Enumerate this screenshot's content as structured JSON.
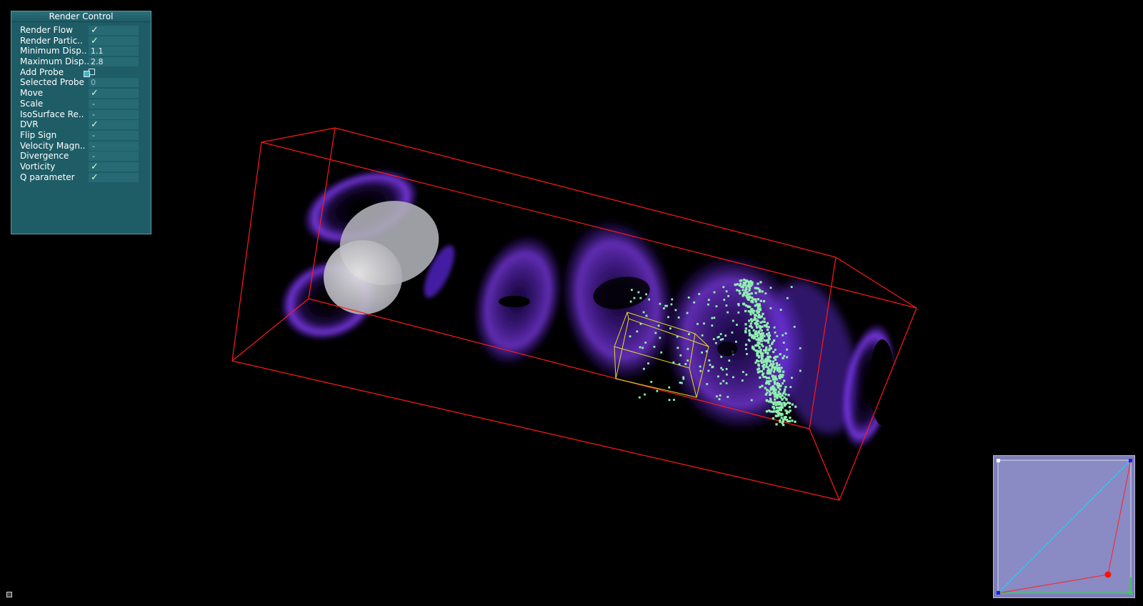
{
  "panel": {
    "title": "Render Control",
    "rows": [
      {
        "label": "Render Flow",
        "value": "✓",
        "kind": "check"
      },
      {
        "label": "Render Partic..",
        "value": "✓",
        "kind": "check"
      },
      {
        "label": "Minimum Disp..",
        "value": "1.1",
        "kind": "num"
      },
      {
        "label": "Maximum Disp..",
        "value": "2.8",
        "kind": "num"
      },
      {
        "label": "Add Probe",
        "value": "",
        "kind": "square"
      },
      {
        "label": "Selected Probe",
        "value": "0",
        "kind": "selnum"
      },
      {
        "label": "Move",
        "value": "✓",
        "kind": "check"
      },
      {
        "label": "Scale",
        "value": "-",
        "kind": "dash"
      },
      {
        "label": "IsoSurface Re..",
        "value": "-",
        "kind": "dash"
      },
      {
        "label": "DVR",
        "value": "✓",
        "kind": "check"
      },
      {
        "label": "Flip Sign",
        "value": "-",
        "kind": "dash"
      },
      {
        "label": "Velocity Magn..",
        "value": "-",
        "kind": "dash"
      },
      {
        "label": "Divergence",
        "value": "-",
        "kind": "dash"
      },
      {
        "label": "Vorticity",
        "value": "✓",
        "kind": "check"
      },
      {
        "label": "Q parameter",
        "value": "✓",
        "kind": "check"
      }
    ]
  },
  "colors": {
    "background": "#000000",
    "panel_bg": "#1e5c66",
    "bounding_box": "#ff1a1a",
    "probe_box": "#e0e020",
    "particles": "#8ef0b0",
    "vortex": "#7a3cff",
    "obstacle": "#c8c8c8",
    "minimap_bg": "#7e7fb8"
  }
}
